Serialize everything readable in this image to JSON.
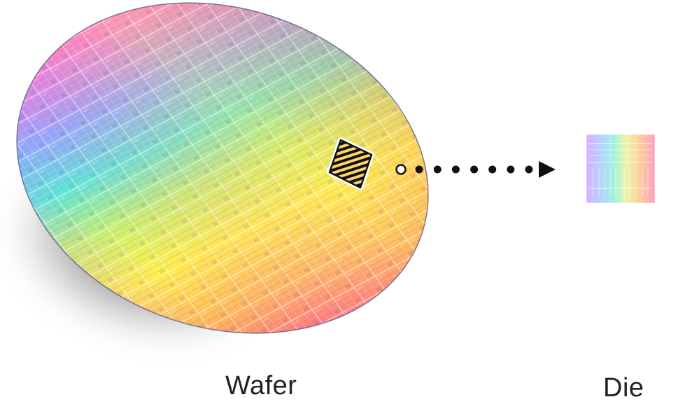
{
  "labels": {
    "wafer": "Wafer",
    "die": "Die"
  },
  "colors": {
    "background": "#ffffff",
    "arrow": "#111111",
    "label_text": "#222222",
    "spectrum": [
      "#ff4fd8",
      "#a36bff",
      "#59c3ff",
      "#4cf0c8",
      "#b8f36a",
      "#fff04a",
      "#ffb547",
      "#ff6a6a",
      "#ff4fa8"
    ]
  },
  "icons": {
    "wafer": "silicon-wafer-illustration",
    "die": "die-chip-icon",
    "arrow": "dotted-arrow-icon",
    "selection": "selected-die-marker-icon"
  },
  "arrow": {
    "dot_count": 8
  }
}
